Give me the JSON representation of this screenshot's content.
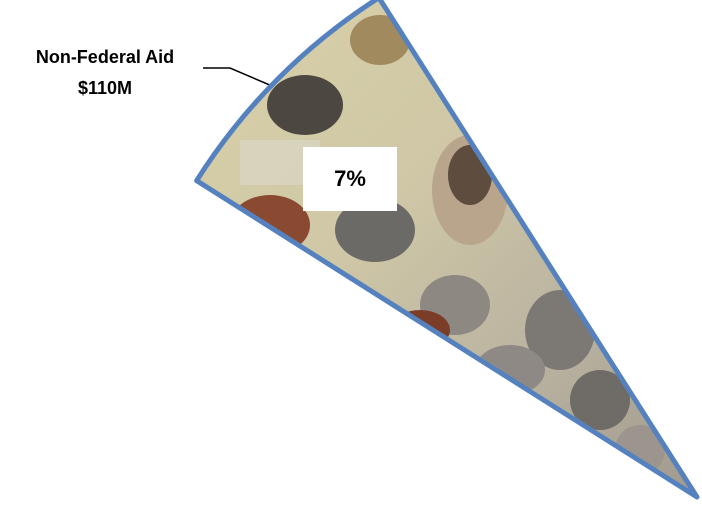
{
  "chart_data": {
    "type": "pie",
    "categories": [
      "Non-Federal Aid"
    ],
    "values": [
      7
    ],
    "value_labels": [
      "7%"
    ],
    "amounts": [
      110000000
    ],
    "amount_labels": [
      "$110M"
    ],
    "color": "#5582bf"
  }
}
